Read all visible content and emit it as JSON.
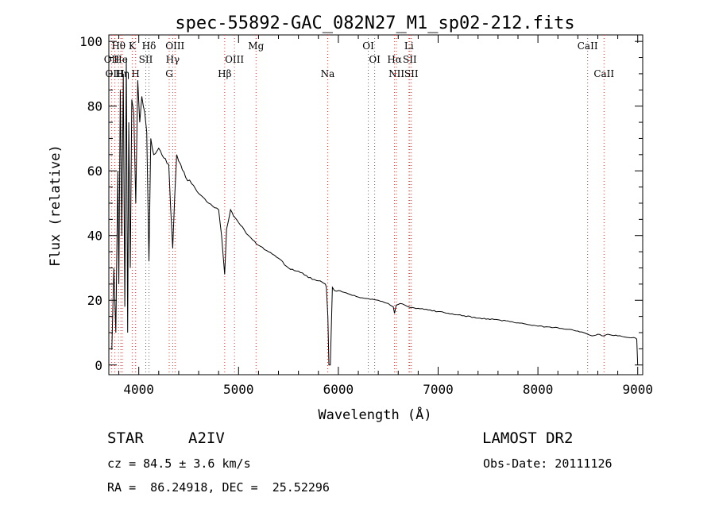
{
  "chart_data": {
    "type": "line",
    "title": "spec-55892-GAC_082N27_M1_sp02-212.fits",
    "xlabel": "Wavelength (Å)",
    "ylabel": "Flux (relative)",
    "xlim": [
      3700,
      9050
    ],
    "ylim": [
      -3,
      102
    ],
    "xticks": [
      4000,
      5000,
      6000,
      7000,
      8000,
      9000
    ],
    "yticks": [
      0,
      20,
      40,
      60,
      80,
      100
    ],
    "grid": false,
    "series": [
      {
        "x": [
          3730,
          3750,
          3770,
          3790,
          3800,
          3815,
          3830,
          3845,
          3860,
          3875,
          3889,
          3900,
          3915,
          3930,
          3950,
          3970,
          3990,
          4010,
          4030,
          4060,
          4080,
          4102,
          4120,
          4150,
          4200,
          4250,
          4300,
          4320,
          4340,
          4360,
          4380,
          4420,
          4470,
          4530,
          4600,
          4700,
          4800,
          4830,
          4861,
          4880,
          4920,
          4950,
          5000,
          5100,
          5200,
          5300,
          5400,
          5500,
          5600,
          5700,
          5800,
          5870,
          5880,
          5895,
          5905,
          5920,
          5940,
          5960,
          6000,
          6100,
          6200,
          6300,
          6400,
          6500,
          6550,
          6563,
          6580,
          6620,
          6700,
          6800,
          6900,
          7000,
          7200,
          7400,
          7600,
          7800,
          8000,
          8200,
          8300,
          8400,
          8498,
          8542,
          8600,
          8662,
          8700,
          8800,
          8900,
          8960,
          8990,
          9000
        ],
        "y": [
          5,
          30,
          10,
          60,
          25,
          85,
          40,
          90,
          18,
          95,
          10,
          75,
          30,
          82,
          78,
          50,
          88,
          75,
          83,
          78,
          72,
          32,
          70,
          65,
          67,
          64,
          62,
          48,
          36,
          52,
          65,
          62,
          58,
          56,
          53,
          50,
          48,
          40,
          28,
          42,
          48,
          46,
          44,
          40,
          37,
          35,
          33,
          30,
          29,
          27,
          26,
          25,
          24,
          15,
          0,
          0,
          24,
          23,
          23,
          22,
          21,
          20.5,
          20,
          19,
          18,
          16,
          18.5,
          19,
          18,
          17.5,
          17,
          16.5,
          15.5,
          14.5,
          14,
          13,
          12,
          11.5,
          11,
          10.5,
          9.5,
          9,
          9.5,
          9,
          9.5,
          9,
          8.5,
          8.5,
          8,
          0
        ]
      }
    ],
    "lines": [
      {
        "label": "Hθ",
        "x": 3797,
        "row": 1
      },
      {
        "label": "OII",
        "x": 3727,
        "row": 2
      },
      {
        "label": "OIII",
        "x": 3760,
        "row": 3
      },
      {
        "label": "He",
        "x": 3820,
        "row": 2
      },
      {
        "label": "Hη",
        "x": 3835,
        "row": 3
      },
      {
        "label": "K",
        "x": 3934,
        "row": 1
      },
      {
        "label": "H",
        "x": 3968,
        "row": 3
      },
      {
        "label": "SII",
        "x": 4070,
        "row": 2
      },
      {
        "label": "Hδ",
        "x": 4102,
        "row": 1
      },
      {
        "label": "OIII",
        "x": 4363,
        "row": 1
      },
      {
        "label": "Hγ",
        "x": 4340,
        "row": 2
      },
      {
        "label": "G",
        "x": 4305,
        "row": 3
      },
      {
        "label": "OIII",
        "x": 4959,
        "row": 2
      },
      {
        "label": "Hβ",
        "x": 4861,
        "row": 3
      },
      {
        "label": "Mg",
        "x": 5175,
        "row": 1
      },
      {
        "label": "Na",
        "x": 5893,
        "row": 3
      },
      {
        "label": "OI",
        "x": 6300,
        "row": 1
      },
      {
        "label": "OI",
        "x": 6364,
        "row": 2
      },
      {
        "label": "NII",
        "x": 6583,
        "row": 3
      },
      {
        "label": "Hα",
        "x": 6563,
        "row": 2
      },
      {
        "label": "Li",
        "x": 6708,
        "row": 1
      },
      {
        "label": "SII",
        "x": 6716,
        "row": 2
      },
      {
        "label": "SII",
        "x": 6731,
        "row": 3
      },
      {
        "label": "CaII",
        "x": 8498,
        "row": 1
      },
      {
        "label": "CaII",
        "x": 8662,
        "row": 3
      }
    ]
  },
  "info": {
    "object_class": "STAR",
    "subclass": "A2IV",
    "survey": "LAMOST DR2",
    "redshift": "cz = 84.5 ± 3.6 km/s",
    "obs_date": "Obs-Date: 20111126",
    "coords": "RA =  86.24918, DEC =  25.52296"
  }
}
